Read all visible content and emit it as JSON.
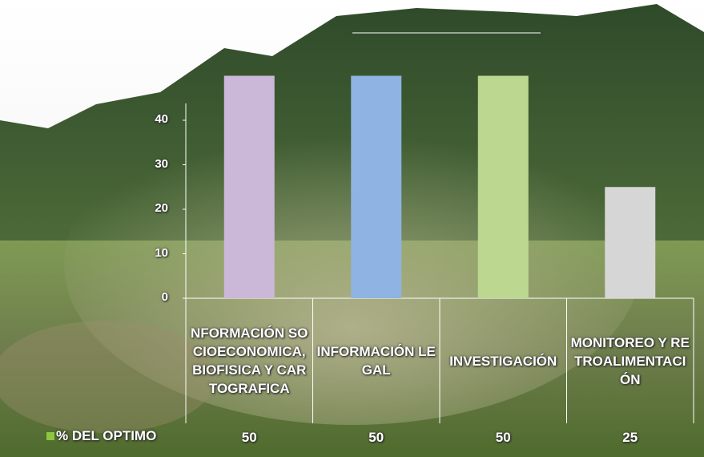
{
  "chart_data": {
    "type": "bar",
    "categories": [
      "NFORMACIÓN SOCIOECONOMICA, BIOFISICA Y CARTOGRAFICA",
      "INFORMACIÓN LEGAL",
      "INVESTIGACIÓN",
      "MONITOREO Y RETROALIMENTACIÓN"
    ],
    "series": [
      {
        "name": "% DEL OPTIMO",
        "color": "#8dc63f",
        "values": [
          50,
          50,
          50,
          25
        ]
      }
    ],
    "colors": [
      "#cbb8d9",
      "#8fb3e2",
      "#bcd78f",
      "#d6d6d6"
    ],
    "ylim": [
      0,
      60
    ],
    "yticks": [
      0,
      10,
      20,
      30,
      40
    ]
  }
}
